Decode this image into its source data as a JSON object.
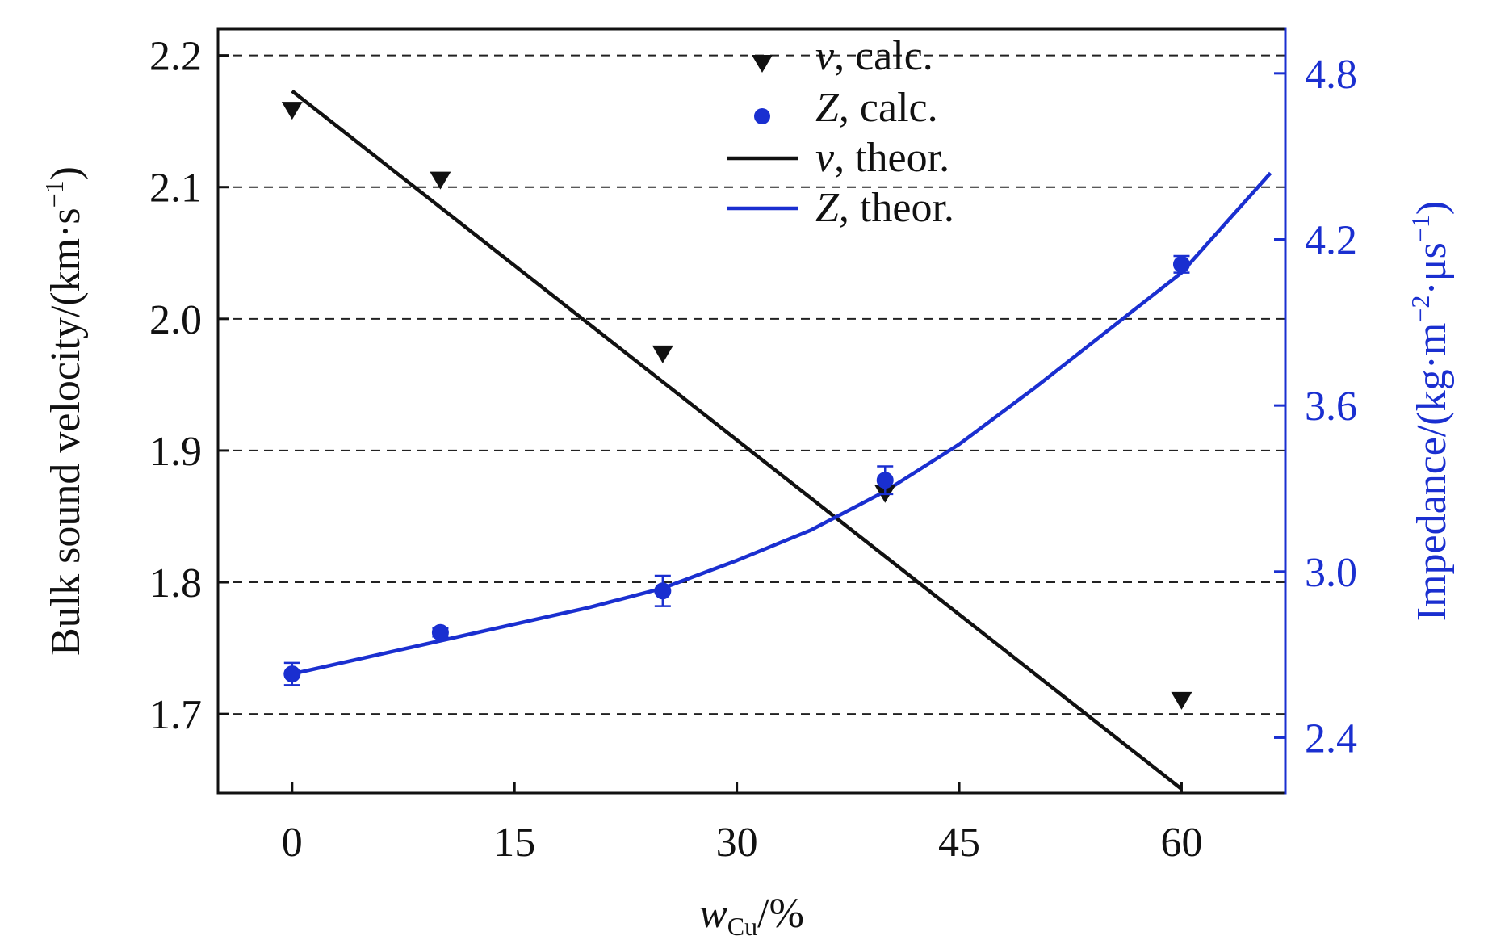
{
  "chart_data": {
    "type": "scatter",
    "xlabel": {
      "main": "w",
      "sub": "Cu",
      "rest": "/%"
    },
    "ylabel_left": {
      "main": "Bulk sound velocity/(km·s",
      "sup": "−1",
      "tail": ")"
    },
    "ylabel_right": {
      "main": "Impedance/(kg·m",
      "sup1": "−2",
      "mid": "·μs",
      "sup2": "−1",
      "tail": ")"
    },
    "xlim": [
      -5,
      67
    ],
    "ylim_left": [
      1.64,
      2.22
    ],
    "ylim_right": [
      2.2,
      4.96
    ],
    "xticks": [
      0,
      15,
      30,
      45,
      60
    ],
    "yticks_left": [
      1.7,
      1.8,
      1.9,
      2.0,
      2.1,
      2.2
    ],
    "yticks_right": [
      2.4,
      3.0,
      3.6,
      4.2,
      4.8
    ],
    "xtick_labels": [
      "0",
      "15",
      "30",
      "45",
      "60"
    ],
    "ytick_labels_left": [
      "1.7",
      "1.8",
      "1.9",
      "2.0",
      "2.1",
      "2.2"
    ],
    "ytick_labels_right": [
      "2.4",
      "3.0",
      "3.6",
      "4.2",
      "4.8"
    ],
    "grid": "horizontal dashed at left-axis ticks",
    "legend_position": "top-center",
    "legend": [
      {
        "var": "v",
        "text": ", calc.",
        "marker": "triangle-down",
        "color": "#111111"
      },
      {
        "var": "Z",
        "text": ", calc.",
        "marker": "circle",
        "color": "#1a2fd0"
      },
      {
        "var": "v",
        "text": ", theor.",
        "marker": "line",
        "color": "#111111"
      },
      {
        "var": "Z",
        "text": ", theor.",
        "marker": "line",
        "color": "#1a2fd0"
      }
    ],
    "series": [
      {
        "name": "v, calc.",
        "axis": "left",
        "kind": "points",
        "marker": "triangle-down",
        "color": "#111111",
        "x": [
          0,
          10,
          25,
          40,
          60
        ],
        "y": [
          2.158,
          2.105,
          1.973,
          1.867,
          1.71
        ]
      },
      {
        "name": "Z, calc.",
        "axis": "right",
        "kind": "points",
        "marker": "circle",
        "color": "#1a2fd0",
        "x": [
          0,
          10,
          25,
          40,
          60
        ],
        "y": [
          2.63,
          2.78,
          2.93,
          3.33,
          4.11
        ],
        "err": [
          0.04,
          0.015,
          0.055,
          0.05,
          0.03
        ]
      },
      {
        "name": "v, theor.",
        "axis": "left",
        "kind": "line",
        "color": "#111111",
        "x": [
          0,
          60
        ],
        "y": [
          2.173,
          1.643
        ]
      },
      {
        "name": "Z, theor.",
        "axis": "right",
        "kind": "line",
        "color": "#1a2fd0",
        "x": [
          0,
          5,
          10,
          15,
          20,
          25,
          30,
          35,
          40,
          45,
          50,
          55,
          60,
          66
        ],
        "y": [
          2.63,
          2.69,
          2.75,
          2.81,
          2.87,
          2.94,
          3.04,
          3.15,
          3.29,
          3.46,
          3.66,
          3.87,
          4.08,
          4.44
        ]
      }
    ]
  }
}
